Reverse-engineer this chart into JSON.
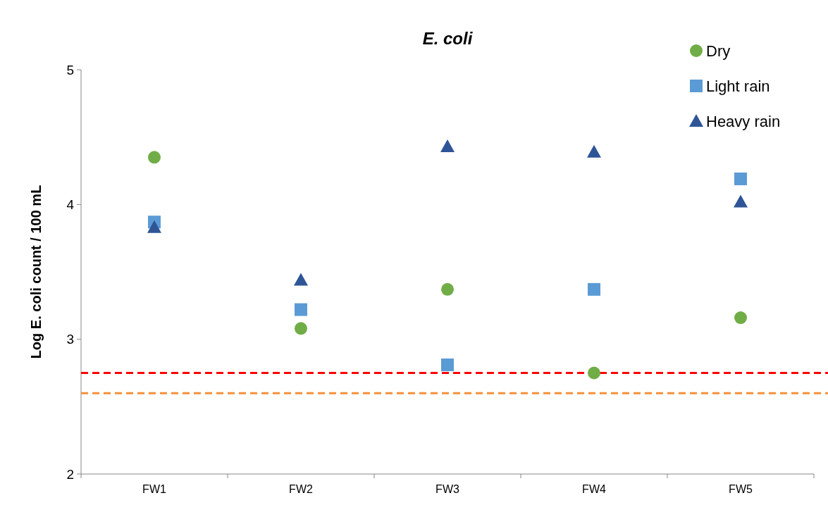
{
  "chart_data": {
    "type": "scatter",
    "title": "E. coli",
    "ylabel": "Log E. coli count / 100 mL",
    "categories": [
      "FW1",
      "FW2",
      "FW3",
      "FW4",
      "FW5"
    ],
    "series": [
      {
        "name": "Dry",
        "color": "#70ad47",
        "marker": "circle",
        "values": [
          4.35,
          3.08,
          3.37,
          2.75,
          3.16
        ]
      },
      {
        "name": "Light rain",
        "color": "#5b9bd5",
        "marker": "square",
        "values": [
          3.87,
          3.22,
          2.81,
          3.37,
          4.19
        ]
      },
      {
        "name": "Heavy rain",
        "color": "#2f5597",
        "marker": "triangle",
        "values": [
          3.83,
          3.44,
          4.43,
          4.39,
          4.02
        ]
      }
    ],
    "ylim": [
      2,
      5
    ],
    "yticks": [
      2,
      3,
      4,
      5
    ],
    "grid": false,
    "legend": "top right",
    "ref_lines": [
      {
        "axis": "y",
        "value": 2.75,
        "color": "#ff0000",
        "line_style": "dashed"
      },
      {
        "axis": "y",
        "value": 2.6,
        "color": "#f4913c",
        "line_style": "dashed"
      }
    ]
  }
}
